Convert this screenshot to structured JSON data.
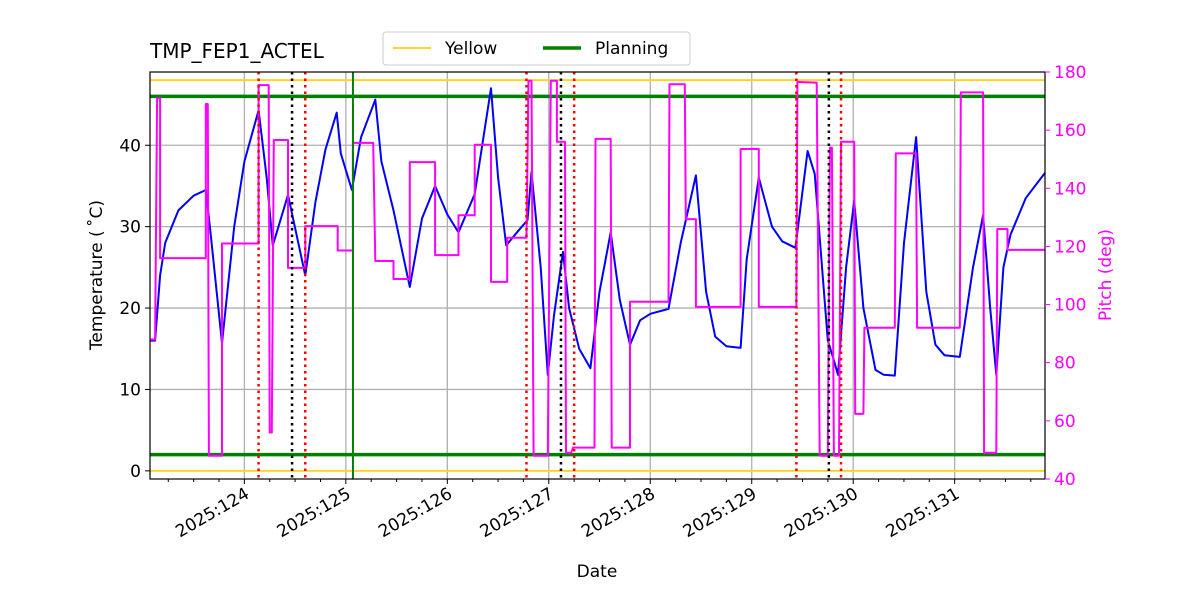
{
  "chart_data": {
    "type": "line",
    "title": "TMP_FEP1_ACTEL",
    "xlabel": "Date",
    "ylabel": "Temperature ($^\\circ$C)",
    "ylabel_display": "Temperature ( ˚C)",
    "y2label": "Pitch (deg)",
    "xlim": [
      123.07,
      131.89
    ],
    "ylim": [
      -1,
      49
    ],
    "y2lim": [
      40,
      180
    ],
    "grid": true,
    "legend_placement": "top-center",
    "x_ticks": [
      {
        "value": 124,
        "label": "2025:124"
      },
      {
        "value": 125,
        "label": "2025:125"
      },
      {
        "value": 126,
        "label": "2025:126"
      },
      {
        "value": 127,
        "label": "2025:127"
      },
      {
        "value": 128,
        "label": "2025:128"
      },
      {
        "value": 129,
        "label": "2025:129"
      },
      {
        "value": 130,
        "label": "2025:130"
      },
      {
        "value": 131,
        "label": "2025:131"
      }
    ],
    "y_ticks": [
      0,
      10,
      20,
      30,
      40
    ],
    "y2_ticks": [
      40,
      60,
      80,
      100,
      120,
      140,
      160,
      180
    ],
    "legend": [
      {
        "name": "Yellow",
        "color": "#ffd42a"
      },
      {
        "name": "Planning",
        "color": "#008000"
      }
    ],
    "limits": {
      "yellow": {
        "values": [
          0,
          48
        ],
        "color": "#ffd42a"
      },
      "planning": {
        "values": [
          2,
          46
        ],
        "color": "#008000"
      }
    },
    "vlines": {
      "red_dotted": [
        124.14,
        124.6,
        126.78,
        127.25,
        129.44,
        129.88
      ],
      "black_dotted": [
        124.47,
        127.12,
        129.76
      ],
      "green_solid": [
        125.07
      ]
    },
    "colors": {
      "temperature": "#0000ff",
      "pitch": "#ff00ff",
      "red": "#ff0000",
      "black": "#000000",
      "green": "#008000",
      "grid": "#b0b0b0"
    },
    "series": [
      {
        "axis": "left",
        "color": "#0000ff",
        "points": [
          [
            123.07,
            16
          ],
          [
            123.12,
            16
          ],
          [
            123.17,
            24
          ],
          [
            123.22,
            28
          ],
          [
            123.35,
            32
          ],
          [
            123.5,
            33.8
          ],
          [
            123.62,
            34.5
          ],
          [
            123.66,
            30
          ],
          [
            123.78,
            15.7
          ],
          [
            123.9,
            30
          ],
          [
            124.0,
            38
          ],
          [
            124.14,
            44.3
          ],
          [
            124.22,
            36
          ],
          [
            124.28,
            27.7
          ],
          [
            124.43,
            33.9
          ],
          [
            124.6,
            24
          ],
          [
            124.7,
            33
          ],
          [
            124.8,
            39.5
          ],
          [
            124.91,
            44
          ],
          [
            124.95,
            39
          ],
          [
            125.06,
            34.5
          ],
          [
            125.15,
            41
          ],
          [
            125.29,
            45.6
          ],
          [
            125.35,
            38
          ],
          [
            125.47,
            32
          ],
          [
            125.63,
            22.6
          ],
          [
            125.75,
            31
          ],
          [
            125.88,
            35
          ],
          [
            126.0,
            31.5
          ],
          [
            126.11,
            29.3
          ],
          [
            126.27,
            34
          ],
          [
            126.43,
            47
          ],
          [
            126.5,
            36
          ],
          [
            126.58,
            27.7
          ],
          [
            126.7,
            29.5
          ],
          [
            126.79,
            30.8
          ],
          [
            126.83,
            36.7
          ],
          [
            126.92,
            25
          ],
          [
            126.99,
            11.8
          ],
          [
            127.05,
            19
          ],
          [
            127.14,
            26.9
          ],
          [
            127.2,
            20
          ],
          [
            127.3,
            15
          ],
          [
            127.41,
            12.6
          ],
          [
            127.5,
            22
          ],
          [
            127.61,
            29.3
          ],
          [
            127.7,
            21
          ],
          [
            127.8,
            15.5
          ],
          [
            127.9,
            18.5
          ],
          [
            128.0,
            19.3
          ],
          [
            128.18,
            19.9
          ],
          [
            128.3,
            28
          ],
          [
            128.45,
            36.3
          ],
          [
            128.55,
            22
          ],
          [
            128.64,
            16.5
          ],
          [
            128.75,
            15.3
          ],
          [
            128.89,
            15.1
          ],
          [
            128.95,
            26
          ],
          [
            129.07,
            36
          ],
          [
            129.2,
            30
          ],
          [
            129.3,
            28.2
          ],
          [
            129.43,
            27.4
          ],
          [
            129.55,
            39.3
          ],
          [
            129.62,
            36.5
          ],
          [
            129.75,
            16
          ],
          [
            129.8,
            14
          ],
          [
            129.85,
            11.8
          ],
          [
            129.93,
            25
          ],
          [
            130.01,
            33.2
          ],
          [
            130.1,
            20
          ],
          [
            130.22,
            12.4
          ],
          [
            130.3,
            11.8
          ],
          [
            130.41,
            11.7
          ],
          [
            130.5,
            28
          ],
          [
            130.62,
            41
          ],
          [
            130.72,
            22
          ],
          [
            130.81,
            15.5
          ],
          [
            130.9,
            14.2
          ],
          [
            131.05,
            14
          ],
          [
            131.18,
            25
          ],
          [
            131.28,
            31.4
          ],
          [
            131.35,
            20
          ],
          [
            131.41,
            11.8
          ],
          [
            131.48,
            25
          ],
          [
            131.55,
            29
          ],
          [
            131.7,
            33.5
          ],
          [
            131.89,
            36.6
          ]
        ]
      },
      {
        "axis": "right",
        "color": "#ff00ff",
        "points": [
          [
            123.07,
            88
          ],
          [
            123.12,
            88
          ],
          [
            123.14,
            171
          ],
          [
            123.17,
            171
          ],
          [
            123.17,
            116
          ],
          [
            123.62,
            116
          ],
          [
            123.62,
            169
          ],
          [
            123.64,
            169
          ],
          [
            123.65,
            48
          ],
          [
            123.78,
            48
          ],
          [
            123.78,
            121
          ],
          [
            124.14,
            121
          ],
          [
            124.14,
            175.5
          ],
          [
            124.24,
            175.5
          ],
          [
            124.25,
            56
          ],
          [
            124.27,
            56
          ],
          [
            124.29,
            156.6
          ],
          [
            124.43,
            156.6
          ],
          [
            124.43,
            112.6
          ],
          [
            124.6,
            112.6
          ],
          [
            124.6,
            127
          ],
          [
            124.92,
            127
          ],
          [
            124.92,
            118.6
          ],
          [
            125.07,
            118.6
          ],
          [
            125.07,
            155.6
          ],
          [
            125.27,
            155.6
          ],
          [
            125.29,
            115
          ],
          [
            125.47,
            115
          ],
          [
            125.47,
            108.8
          ],
          [
            125.63,
            108.8
          ],
          [
            125.63,
            149
          ],
          [
            125.88,
            149
          ],
          [
            125.88,
            117
          ],
          [
            126.11,
            117
          ],
          [
            126.11,
            130.7
          ],
          [
            126.27,
            130.7
          ],
          [
            126.27,
            155
          ],
          [
            126.43,
            155
          ],
          [
            126.43,
            107.8
          ],
          [
            126.59,
            107.8
          ],
          [
            126.59,
            123
          ],
          [
            126.78,
            123
          ],
          [
            126.8,
            177
          ],
          [
            126.83,
            177
          ],
          [
            126.85,
            48
          ],
          [
            126.99,
            48
          ],
          [
            127.02,
            177
          ],
          [
            127.08,
            177
          ],
          [
            127.08,
            156
          ],
          [
            127.16,
            156
          ],
          [
            127.17,
            49
          ],
          [
            127.22,
            49
          ],
          [
            127.24,
            50.8
          ],
          [
            127.45,
            50.8
          ],
          [
            127.46,
            157
          ],
          [
            127.61,
            157
          ],
          [
            127.62,
            50.8
          ],
          [
            127.8,
            50.8
          ],
          [
            127.8,
            101
          ],
          [
            128.18,
            101
          ],
          [
            128.19,
            175.8
          ],
          [
            128.34,
            175.8
          ],
          [
            128.35,
            129.4
          ],
          [
            128.45,
            129.4
          ],
          [
            128.45,
            99.2
          ],
          [
            128.89,
            99.2
          ],
          [
            128.89,
            153.5
          ],
          [
            129.07,
            153.5
          ],
          [
            129.07,
            99.2
          ],
          [
            129.44,
            99.2
          ],
          [
            129.45,
            176.6
          ],
          [
            129.64,
            176.3
          ],
          [
            129.67,
            48
          ],
          [
            129.75,
            48
          ],
          [
            129.77,
            154
          ],
          [
            129.79,
            154
          ],
          [
            129.81,
            48
          ],
          [
            129.86,
            48
          ],
          [
            129.88,
            156
          ],
          [
            130.01,
            156
          ],
          [
            130.02,
            62.4
          ],
          [
            130.1,
            62.4
          ],
          [
            130.11,
            92
          ],
          [
            130.41,
            92
          ],
          [
            130.42,
            152
          ],
          [
            130.62,
            152
          ],
          [
            130.63,
            92
          ],
          [
            131.05,
            92
          ],
          [
            131.06,
            173
          ],
          [
            131.28,
            173
          ],
          [
            131.29,
            49
          ],
          [
            131.41,
            49
          ],
          [
            131.42,
            126
          ],
          [
            131.52,
            126
          ],
          [
            131.52,
            118.8
          ],
          [
            131.89,
            118.8
          ]
        ]
      }
    ]
  }
}
